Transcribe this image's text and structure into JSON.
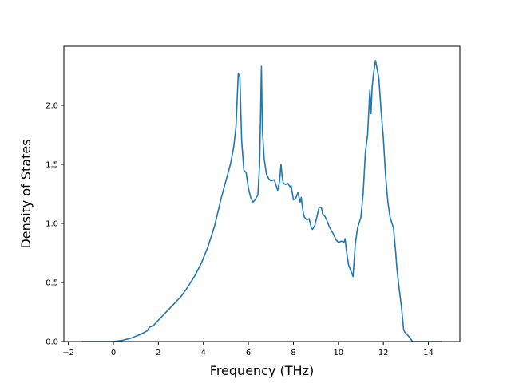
{
  "chart_data": {
    "type": "line",
    "xlabel": "Frequency (THz)",
    "ylabel": "Density of States",
    "xlim": [
      -2.2,
      15.4
    ],
    "ylim": [
      0.0,
      2.5
    ],
    "grid": false,
    "legend": "none",
    "x_ticks": [
      -2,
      0,
      2,
      4,
      6,
      8,
      10,
      12,
      14
    ],
    "x_tick_labels": [
      "−2",
      "0",
      "2",
      "4",
      "6",
      "8",
      "10",
      "12",
      "14"
    ],
    "y_ticks": [
      0.0,
      0.5,
      1.0,
      1.5,
      2.0
    ],
    "y_tick_labels": [
      "0.0",
      "0.5",
      "1.0",
      "1.5",
      "2.0"
    ],
    "colors": {
      "line": "#1f77b4",
      "axes": "#000000",
      "background": "#ffffff"
    },
    "series": [
      {
        "x": [
          -1.4,
          -0.5,
          0.0,
          0.4,
          0.8,
          1.2,
          1.5,
          1.6,
          1.8,
          2.0,
          2.3,
          2.6,
          3.0,
          3.3,
          3.6,
          3.9,
          4.2,
          4.5,
          4.8,
          5.0,
          5.2,
          5.35,
          5.45,
          5.55,
          5.62,
          5.7,
          5.8,
          5.9,
          6.0,
          6.1,
          6.2,
          6.3,
          6.42,
          6.5,
          6.58,
          6.62,
          6.7,
          6.8,
          6.9,
          7.0,
          7.15,
          7.3,
          7.38,
          7.45,
          7.5,
          7.55,
          7.65,
          7.75,
          7.85,
          7.9,
          8.0,
          8.1,
          8.2,
          8.3,
          8.35,
          8.4,
          8.45,
          8.5,
          8.6,
          8.7,
          8.8,
          8.85,
          8.95,
          9.05,
          9.15,
          9.25,
          9.3,
          9.4,
          9.5,
          9.6,
          9.75,
          9.9,
          10.0,
          10.15,
          10.25,
          10.3,
          10.35,
          10.45,
          10.55,
          10.65,
          10.75,
          10.85,
          11.0,
          11.1,
          11.2,
          11.3,
          11.4,
          11.45,
          11.5,
          11.55,
          11.65,
          11.8,
          11.9,
          12.0,
          12.1,
          12.2,
          12.3,
          12.45,
          12.55,
          12.6,
          12.7,
          12.8,
          12.9,
          12.95,
          13.1,
          13.3,
          14.0,
          14.6
        ],
        "y": [
          0.0,
          0.0,
          0.0,
          0.01,
          0.03,
          0.06,
          0.09,
          0.12,
          0.14,
          0.18,
          0.24,
          0.3,
          0.38,
          0.46,
          0.55,
          0.66,
          0.8,
          0.98,
          1.22,
          1.36,
          1.5,
          1.65,
          1.82,
          2.27,
          2.24,
          1.7,
          1.45,
          1.43,
          1.3,
          1.22,
          1.18,
          1.2,
          1.24,
          1.5,
          2.33,
          1.8,
          1.55,
          1.42,
          1.38,
          1.36,
          1.37,
          1.28,
          1.35,
          1.5,
          1.4,
          1.34,
          1.33,
          1.34,
          1.31,
          1.32,
          1.2,
          1.21,
          1.26,
          1.18,
          1.22,
          1.14,
          1.08,
          1.05,
          1.03,
          1.04,
          0.96,
          0.95,
          0.98,
          1.06,
          1.14,
          1.13,
          1.08,
          1.06,
          1.02,
          0.97,
          0.92,
          0.86,
          0.84,
          0.85,
          0.84,
          0.87,
          0.78,
          0.65,
          0.6,
          0.55,
          0.82,
          0.96,
          1.05,
          1.25,
          1.6,
          1.75,
          2.13,
          1.93,
          2.15,
          2.25,
          2.38,
          2.23,
          1.95,
          1.72,
          1.4,
          1.18,
          1.05,
          0.96,
          0.75,
          0.62,
          0.45,
          0.3,
          0.1,
          0.08,
          0.05,
          0.0,
          0.0,
          0.0
        ]
      }
    ]
  }
}
